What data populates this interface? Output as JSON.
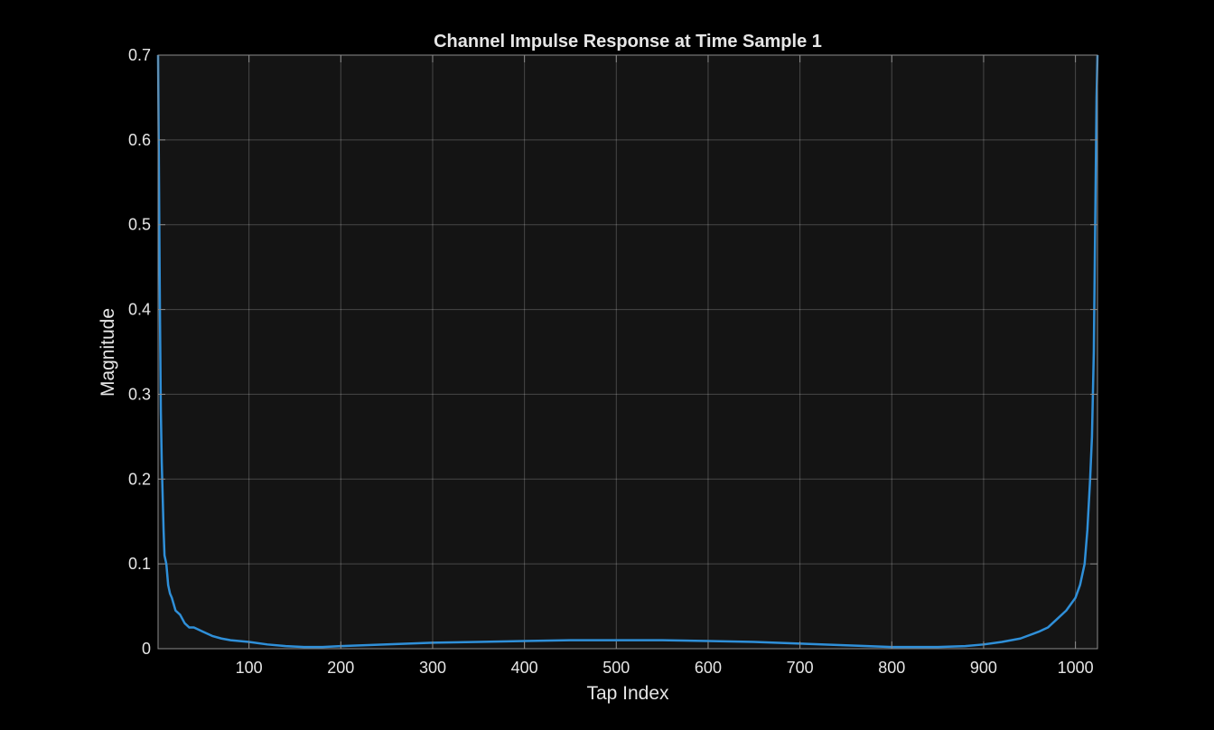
{
  "chart_data": {
    "type": "line",
    "title": "Channel Impulse Response at Time Sample 1",
    "xlabel": "Tap Index",
    "ylabel": "Magnitude",
    "xlim": [
      1,
      1024
    ],
    "ylim": [
      0,
      0.7
    ],
    "xticks": [
      100,
      200,
      300,
      400,
      500,
      600,
      700,
      800,
      900,
      1000
    ],
    "yticks": [
      0,
      0.1,
      0.2,
      0.3,
      0.4,
      0.5,
      0.6,
      0.7
    ],
    "xtick_labels": [
      "100",
      "200",
      "300",
      "400",
      "500",
      "600",
      "700",
      "800",
      "900",
      "1000"
    ],
    "ytick_labels": [
      "0",
      "0.1",
      "0.2",
      "0.3",
      "0.4",
      "0.5",
      "0.6",
      "0.7"
    ],
    "grid": true,
    "legend": null,
    "series": [
      {
        "color": "#2f8fd8",
        "x": [
          1,
          2,
          3,
          4,
          5,
          6,
          7,
          8,
          10,
          12,
          14,
          16,
          20,
          25,
          30,
          35,
          40,
          50,
          60,
          70,
          80,
          100,
          120,
          140,
          160,
          180,
          200,
          250,
          300,
          350,
          400,
          450,
          500,
          550,
          600,
          650,
          700,
          750,
          800,
          850,
          880,
          900,
          920,
          940,
          960,
          970,
          980,
          990,
          1000,
          1005,
          1010,
          1013,
          1016,
          1018,
          1020,
          1021,
          1022,
          1023,
          1024
        ],
        "y": [
          0.7,
          0.55,
          0.4,
          0.28,
          0.22,
          0.18,
          0.14,
          0.11,
          0.1,
          0.075,
          0.065,
          0.06,
          0.045,
          0.04,
          0.03,
          0.025,
          0.025,
          0.02,
          0.015,
          0.012,
          0.01,
          0.008,
          0.005,
          0.003,
          0.002,
          0.002,
          0.003,
          0.005,
          0.007,
          0.008,
          0.009,
          0.01,
          0.01,
          0.01,
          0.009,
          0.008,
          0.006,
          0.004,
          0.002,
          0.002,
          0.003,
          0.005,
          0.008,
          0.012,
          0.02,
          0.025,
          0.035,
          0.045,
          0.06,
          0.075,
          0.1,
          0.14,
          0.2,
          0.25,
          0.35,
          0.45,
          0.55,
          0.65,
          0.7
        ]
      }
    ]
  }
}
